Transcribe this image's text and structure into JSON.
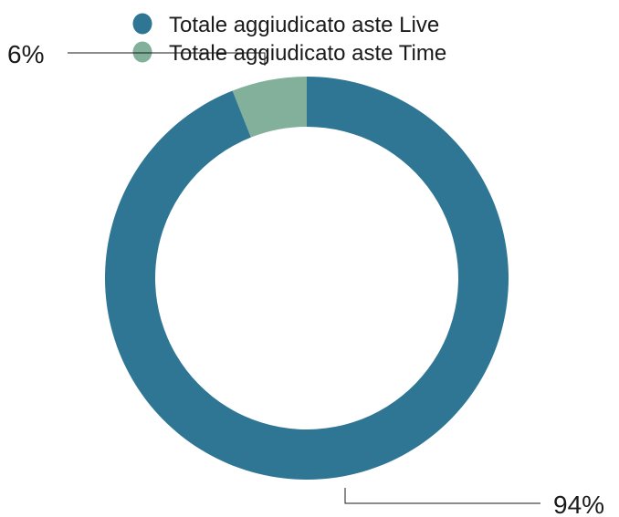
{
  "chart_data": {
    "type": "pie",
    "variant": "donut",
    "title": "",
    "legend_position": "top",
    "slices": [
      {
        "name": "Totale aggiudicato aste Live",
        "value": 94,
        "label": "94%",
        "color": "#2f7594"
      },
      {
        "name": "Totale aggiudicato aste Time",
        "value": 6,
        "label": "6%",
        "color": "#82b09a"
      }
    ]
  }
}
